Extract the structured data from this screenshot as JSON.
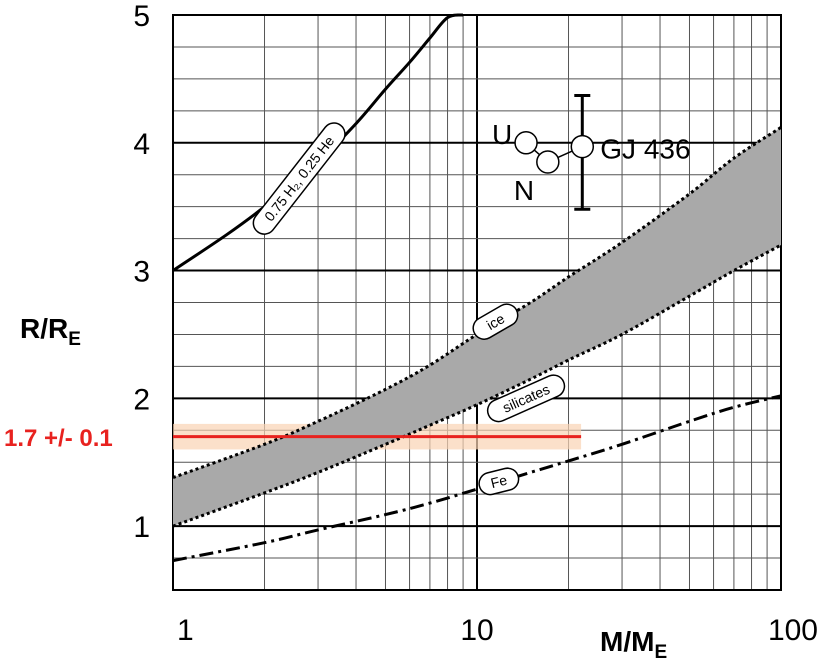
{
  "chart_data": {
    "type": "line",
    "xlabel": "M/M",
    "xlabel_sub": "E",
    "ylabel": "R/R",
    "ylabel_sub": "E",
    "x_scale": "log",
    "xlim": [
      1,
      100
    ],
    "ylim": [
      0.5,
      5
    ],
    "x_ticks": [
      "1",
      "10",
      "100"
    ],
    "y_ticks": [
      "1",
      "2",
      "3",
      "4",
      "5"
    ],
    "grid": true,
    "series": [
      {
        "name": "0.75 H₂, 0.25 He",
        "style": "solid",
        "x": [
          1,
          1.5,
          2,
          3,
          4,
          5,
          6,
          7,
          8,
          9
        ],
        "y": [
          3.0,
          3.28,
          3.5,
          3.85,
          4.15,
          4.42,
          4.63,
          4.82,
          4.98,
          5.0
        ]
      },
      {
        "name": "ice",
        "style": "dotted",
        "x": [
          1,
          2,
          3,
          5,
          7,
          10,
          15,
          20,
          30,
          50,
          70,
          100
        ],
        "y": [
          1.38,
          1.64,
          1.82,
          2.07,
          2.26,
          2.5,
          2.75,
          2.95,
          3.22,
          3.6,
          3.88,
          4.12
        ]
      },
      {
        "name": "silicates",
        "style": "dotted",
        "x": [
          1,
          2,
          3,
          5,
          7,
          10,
          15,
          20,
          30,
          50,
          70,
          100
        ],
        "y": [
          1.0,
          1.26,
          1.42,
          1.64,
          1.79,
          1.95,
          2.15,
          2.3,
          2.5,
          2.8,
          3.0,
          3.2
        ]
      },
      {
        "name": "Fe",
        "style": "dashdot",
        "x": [
          1,
          2,
          3,
          5,
          7,
          10,
          15,
          20,
          30,
          50,
          70,
          100
        ],
        "y": [
          0.73,
          0.87,
          0.97,
          1.09,
          1.18,
          1.29,
          1.42,
          1.51,
          1.64,
          1.82,
          1.93,
          2.02
        ]
      }
    ],
    "band_between": [
      "ice",
      "silicates"
    ],
    "band_color": "#a9a9a9",
    "planets": [
      {
        "name": "U",
        "mass": 14.5,
        "radius": 4.0
      },
      {
        "name": "N",
        "mass": 17.1,
        "radius": 3.85
      },
      {
        "name": "GJ 436",
        "mass": 22.2,
        "radius": 3.97,
        "r_err_low": 3.48,
        "r_err_high": 4.37
      }
    ],
    "highlight": {
      "label": "1.7 +/- 0.1",
      "value": 1.7,
      "low": 1.6,
      "high": 1.8,
      "x_max": 22,
      "color": "#e8221f",
      "band_color": "#f9d3b4"
    }
  }
}
